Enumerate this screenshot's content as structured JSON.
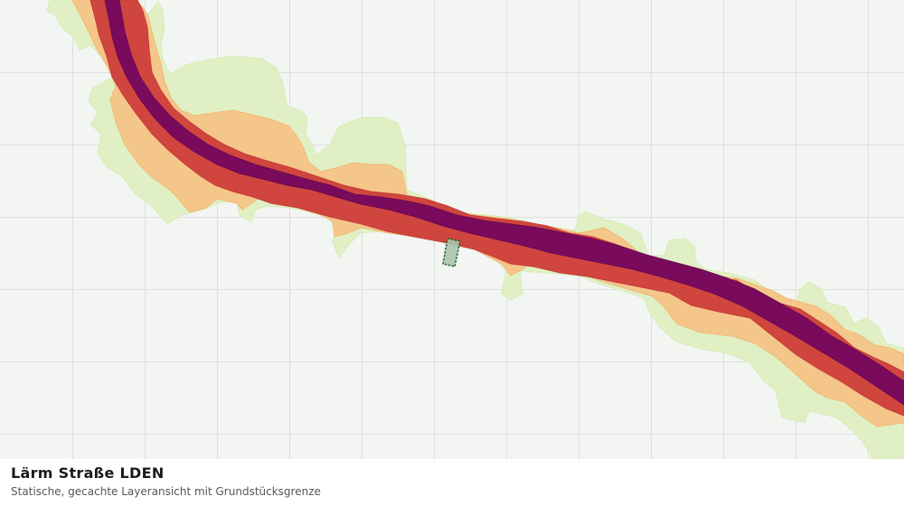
{
  "map": {
    "layer_title": "Lärm Straße LDEN",
    "layer_subtitle": "Statische, gecachte Layeransicht mit Grundstücksgrenze",
    "colors": {
      "background": "#f3f5f2",
      "grid": "#dcdfdb",
      "zone_outer": "#e0f0c4",
      "zone_mid": "#f5c68a",
      "zone_inner": "#d0463f",
      "zone_core": "#7a0a5c",
      "parcel_fill": "#a9c4a8",
      "parcel_stroke": "#1e5a2a"
    },
    "features": {
      "noise_zones": "noise-zones",
      "parcel": "parcel-boundary"
    }
  }
}
